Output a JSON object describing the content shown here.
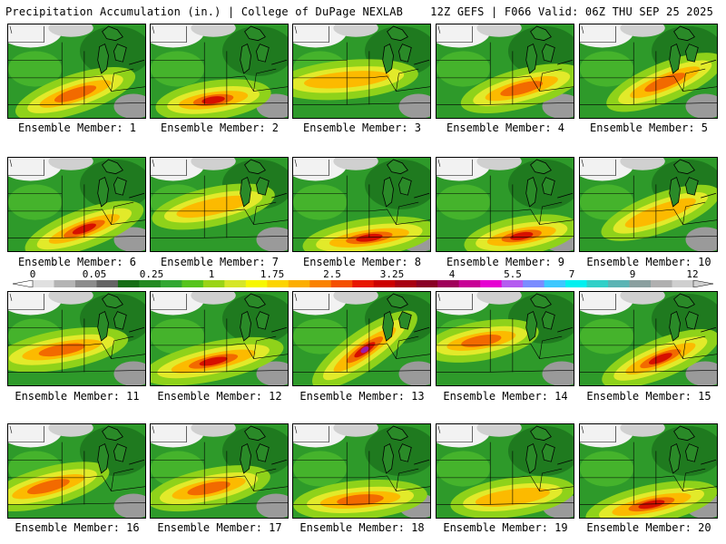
{
  "header": {
    "title": "Precipitation Accumulation (in.) | College of DuPage NEXLAB",
    "run_info": "12Z GEFS | F066 Valid: 06Z THU SEP 25 2025"
  },
  "members": [
    {
      "label": "Ensemble Member: 1"
    },
    {
      "label": "Ensemble Member: 2"
    },
    {
      "label": "Ensemble Member: 3"
    },
    {
      "label": "Ensemble Member: 4"
    },
    {
      "label": "Ensemble Member: 5"
    },
    {
      "label": "Ensemble Member: 6"
    },
    {
      "label": "Ensemble Member: 7"
    },
    {
      "label": "Ensemble Member: 8"
    },
    {
      "label": "Ensemble Member: 9"
    },
    {
      "label": "Ensemble Member: 10"
    },
    {
      "label": "Ensemble Member: 11"
    },
    {
      "label": "Ensemble Member: 12"
    },
    {
      "label": "Ensemble Member: 13"
    },
    {
      "label": "Ensemble Member: 14"
    },
    {
      "label": "Ensemble Member: 15"
    },
    {
      "label": "Ensemble Member: 16"
    },
    {
      "label": "Ensemble Member: 17"
    },
    {
      "label": "Ensemble Member: 18"
    },
    {
      "label": "Ensemble Member: 19"
    },
    {
      "label": "Ensemble Member: 20"
    }
  ],
  "colorbar": {
    "labels": [
      "0",
      "0.05",
      "0.25",
      "1",
      "1.75",
      "2.5",
      "3.25",
      "4",
      "5.5",
      "7",
      "9",
      "12"
    ],
    "colors": [
      "#e0e0e0",
      "#b4b4b4",
      "#8c8c8c",
      "#646464",
      "#156d15",
      "#238a22",
      "#32a832",
      "#56c41c",
      "#9ad416",
      "#d6e628",
      "#f7f700",
      "#fcd400",
      "#fcae00",
      "#fa8200",
      "#f45000",
      "#e81800",
      "#cc0000",
      "#a80012",
      "#8a0026",
      "#a0005a",
      "#c80096",
      "#e600d2",
      "#b45cf0",
      "#7a8cff",
      "#3cc8ff",
      "#00f0f0",
      "#30d0c8",
      "#5ab4b4",
      "#8aa0a0",
      "#b0b0b0",
      "#cfcfcf"
    ]
  }
}
